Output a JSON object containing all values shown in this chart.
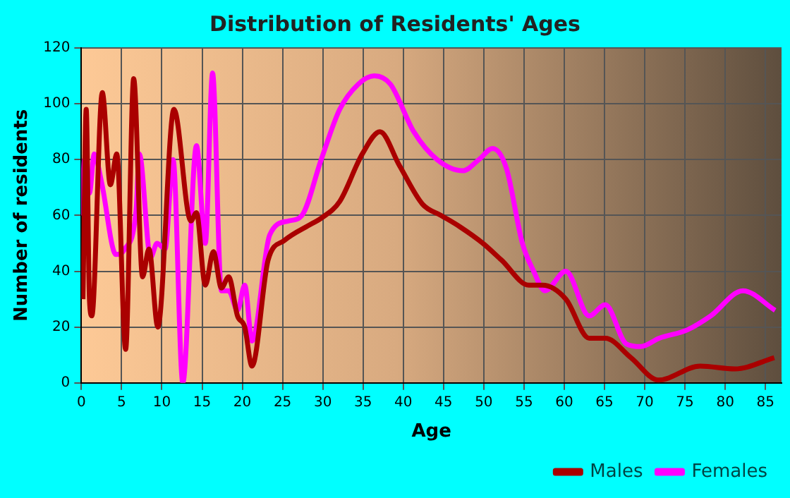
{
  "chart_data": {
    "type": "line",
    "title": "Distribution of Residents' Ages",
    "xlabel": "Age",
    "ylabel": "Number of residents",
    "xlim": [
      0,
      87
    ],
    "xticks": [
      0,
      5,
      10,
      15,
      20,
      25,
      30,
      35,
      40,
      45,
      50,
      55,
      60,
      65,
      70,
      75,
      80,
      85
    ],
    "ylim": [
      0,
      120
    ],
    "yticks": [
      0,
      20,
      40,
      60,
      80,
      100,
      120
    ],
    "grid": true,
    "legend": "bottom right",
    "marker": "none",
    "line_style": "solid",
    "series": [
      {
        "name": "Males",
        "color": "#aa0000",
        "x": [
          0.2,
          0.6,
          1,
          1.3,
          2.6,
          3.6,
          4.4,
          5.5,
          6.5,
          7.6,
          8.4,
          9.5,
          11.5,
          13.6,
          14.3,
          15.4,
          16.4,
          17.4,
          18.3,
          19.4,
          20.3,
          21.2,
          23.2,
          25.2,
          28.6,
          29.8,
          32.1,
          34.9,
          37.1,
          39.5,
          42.4,
          44.7,
          47,
          49.9,
          52.2,
          55.6,
          57.3,
          60.2,
          63.1,
          65.1,
          68.3,
          71.7,
          76.9,
          81.2,
          86.1
        ],
        "values": [
          30,
          98,
          30,
          24,
          104,
          71,
          82,
          12,
          109,
          38,
          48,
          20,
          98,
          58,
          61,
          35,
          47,
          34,
          38,
          24,
          20,
          6,
          44,
          51,
          57,
          59,
          65,
          82,
          90,
          78,
          64,
          60,
          56,
          50,
          44,
          35,
          35,
          30,
          16,
          16,
          9,
          1,
          6,
          5,
          9
        ]
      },
      {
        "name": "Females",
        "color": "#ff00ff",
        "x": [
          0,
          0.4,
          1,
          1.6,
          2.5,
          4.3,
          5.4,
          6.8,
          7.2,
          8.6,
          9.4,
          10.4,
          11.4,
          12.6,
          14.3,
          15.4,
          16.3,
          17.4,
          18.3,
          19.4,
          20.3,
          21.2,
          23.4,
          25.7,
          27.4,
          29.8,
          32.1,
          34.4,
          36.4,
          38.4,
          41.3,
          44.2,
          47.4,
          49.4,
          51.1,
          52.8,
          54.8,
          56.2,
          57.6,
          60.2,
          63.1,
          65.1,
          67.7,
          69.5,
          71.8,
          75.3,
          78.2,
          82.2,
          86.2
        ],
        "values": [
          60,
          80,
          68,
          82,
          72,
          46,
          48,
          62,
          82,
          45,
          50,
          48,
          80,
          0,
          85,
          50,
          111,
          33,
          33,
          26,
          35,
          15,
          53,
          58,
          60,
          80,
          98,
          107,
          110,
          107,
          90,
          80,
          76,
          80,
          84,
          77,
          50,
          40,
          33,
          40,
          24,
          28,
          14,
          13,
          16,
          19,
          24,
          33,
          26
        ]
      }
    ]
  }
}
